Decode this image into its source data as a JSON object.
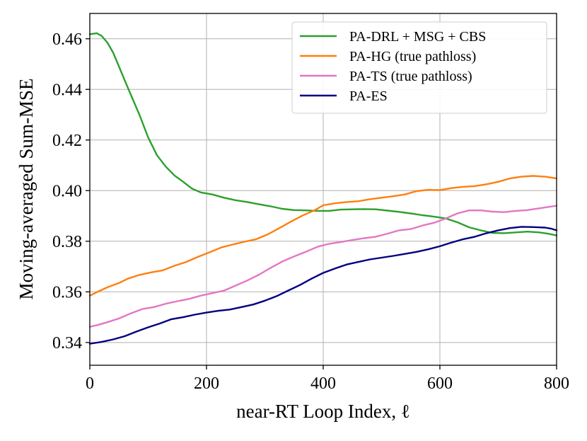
{
  "chart_data": {
    "type": "line",
    "title": "",
    "xlabel": "near-RT Loop Index, ℓ",
    "ylabel": "Moving-averaged Sum-MSE",
    "xlim": [
      0,
      800
    ],
    "ylim": [
      0.331,
      0.47
    ],
    "xticks": [
      0,
      200,
      400,
      600,
      800
    ],
    "yticks": [
      0.34,
      0.36,
      0.38,
      0.4,
      0.42,
      0.44,
      0.46
    ],
    "xtick_labels": [
      "0",
      "200",
      "400",
      "600",
      "800"
    ],
    "ytick_labels": [
      "0.34",
      "0.36",
      "0.38",
      "0.40",
      "0.42",
      "0.44",
      "0.46"
    ],
    "grid": true,
    "legend_position": "top-right",
    "series": [
      {
        "name": "PA-DRL + MSG + CBS",
        "color": "#2ca02c",
        "points": [
          [
            0,
            0.4618
          ],
          [
            12,
            0.4622
          ],
          [
            20,
            0.4612
          ],
          [
            30,
            0.4585
          ],
          [
            40,
            0.4545
          ],
          [
            50,
            0.449
          ],
          [
            60,
            0.4435
          ],
          [
            70,
            0.438
          ],
          [
            85,
            0.43
          ],
          [
            100,
            0.421
          ],
          [
            115,
            0.414
          ],
          [
            130,
            0.4095
          ],
          [
            145,
            0.406
          ],
          [
            160,
            0.4035
          ],
          [
            175,
            0.4008
          ],
          [
            190,
            0.3993
          ],
          [
            210,
            0.3985
          ],
          [
            230,
            0.3972
          ],
          [
            250,
            0.3962
          ],
          [
            270,
            0.3955
          ],
          [
            290,
            0.3946
          ],
          [
            310,
            0.3938
          ],
          [
            330,
            0.3928
          ],
          [
            350,
            0.3923
          ],
          [
            370,
            0.3922
          ],
          [
            390,
            0.392
          ],
          [
            410,
            0.392
          ],
          [
            430,
            0.3925
          ],
          [
            450,
            0.3926
          ],
          [
            470,
            0.3927
          ],
          [
            490,
            0.3926
          ],
          [
            510,
            0.3921
          ],
          [
            530,
            0.3916
          ],
          [
            550,
            0.391
          ],
          [
            570,
            0.3903
          ],
          [
            590,
            0.3897
          ],
          [
            610,
            0.389
          ],
          [
            630,
            0.3875
          ],
          [
            650,
            0.3855
          ],
          [
            670,
            0.3843
          ],
          [
            690,
            0.3833
          ],
          [
            710,
            0.3832
          ],
          [
            730,
            0.3835
          ],
          [
            750,
            0.3838
          ],
          [
            770,
            0.3835
          ],
          [
            785,
            0.383
          ],
          [
            800,
            0.3823
          ]
        ]
      },
      {
        "name": "PA-HG (true pathloss)",
        "color": "#ff7f0e",
        "points": [
          [
            0,
            0.3585
          ],
          [
            15,
            0.3602
          ],
          [
            30,
            0.3618
          ],
          [
            50,
            0.3635
          ],
          [
            65,
            0.3652
          ],
          [
            85,
            0.3667
          ],
          [
            105,
            0.3677
          ],
          [
            125,
            0.3685
          ],
          [
            145,
            0.3703
          ],
          [
            165,
            0.3718
          ],
          [
            185,
            0.3738
          ],
          [
            205,
            0.3756
          ],
          [
            225,
            0.3775
          ],
          [
            245,
            0.3787
          ],
          [
            265,
            0.3798
          ],
          [
            285,
            0.3808
          ],
          [
            305,
            0.3827
          ],
          [
            325,
            0.3852
          ],
          [
            345,
            0.3878
          ],
          [
            365,
            0.3902
          ],
          [
            385,
            0.3922
          ],
          [
            400,
            0.3942
          ],
          [
            420,
            0.395
          ],
          [
            440,
            0.3955
          ],
          [
            460,
            0.3958
          ],
          [
            480,
            0.3966
          ],
          [
            500,
            0.3972
          ],
          [
            520,
            0.3978
          ],
          [
            540,
            0.3985
          ],
          [
            560,
            0.3998
          ],
          [
            580,
            0.4003
          ],
          [
            600,
            0.4002
          ],
          [
            620,
            0.401
          ],
          [
            640,
            0.4015
          ],
          [
            660,
            0.4018
          ],
          [
            680,
            0.4025
          ],
          [
            700,
            0.4035
          ],
          [
            720,
            0.4048
          ],
          [
            740,
            0.4055
          ],
          [
            760,
            0.4058
          ],
          [
            780,
            0.4055
          ],
          [
            800,
            0.4048
          ]
        ]
      },
      {
        "name": "PA-TS (true pathloss)",
        "color": "#e377c2",
        "points": [
          [
            0,
            0.3462
          ],
          [
            15,
            0.347
          ],
          [
            30,
            0.348
          ],
          [
            50,
            0.3495
          ],
          [
            70,
            0.3515
          ],
          [
            90,
            0.3532
          ],
          [
            110,
            0.354
          ],
          [
            130,
            0.3553
          ],
          [
            150,
            0.3563
          ],
          [
            170,
            0.3572
          ],
          [
            190,
            0.3585
          ],
          [
            210,
            0.3595
          ],
          [
            230,
            0.3605
          ],
          [
            250,
            0.3625
          ],
          [
            270,
            0.3645
          ],
          [
            290,
            0.3668
          ],
          [
            310,
            0.3695
          ],
          [
            330,
            0.372
          ],
          [
            350,
            0.374
          ],
          [
            370,
            0.3758
          ],
          [
            390,
            0.3778
          ],
          [
            410,
            0.379
          ],
          [
            430,
            0.3797
          ],
          [
            450,
            0.3805
          ],
          [
            470,
            0.3812
          ],
          [
            490,
            0.3818
          ],
          [
            510,
            0.383
          ],
          [
            530,
            0.3843
          ],
          [
            550,
            0.3848
          ],
          [
            570,
            0.3862
          ],
          [
            590,
            0.3873
          ],
          [
            610,
            0.389
          ],
          [
            630,
            0.391
          ],
          [
            650,
            0.3922
          ],
          [
            670,
            0.3922
          ],
          [
            690,
            0.3917
          ],
          [
            710,
            0.3915
          ],
          [
            730,
            0.392
          ],
          [
            750,
            0.3923
          ],
          [
            770,
            0.393
          ],
          [
            790,
            0.3937
          ],
          [
            800,
            0.394
          ]
        ]
      },
      {
        "name": "PA-ES",
        "color": "#000080",
        "points": [
          [
            0,
            0.3395
          ],
          [
            20,
            0.3402
          ],
          [
            40,
            0.3412
          ],
          [
            60,
            0.3425
          ],
          [
            80,
            0.3443
          ],
          [
            100,
            0.346
          ],
          [
            120,
            0.3475
          ],
          [
            140,
            0.3492
          ],
          [
            160,
            0.35
          ],
          [
            180,
            0.351
          ],
          [
            200,
            0.3518
          ],
          [
            220,
            0.3525
          ],
          [
            240,
            0.353
          ],
          [
            260,
            0.354
          ],
          [
            280,
            0.355
          ],
          [
            300,
            0.3565
          ],
          [
            320,
            0.3583
          ],
          [
            340,
            0.3605
          ],
          [
            360,
            0.3627
          ],
          [
            380,
            0.3652
          ],
          [
            400,
            0.3675
          ],
          [
            420,
            0.3692
          ],
          [
            440,
            0.3708
          ],
          [
            460,
            0.3718
          ],
          [
            480,
            0.3728
          ],
          [
            500,
            0.3735
          ],
          [
            520,
            0.3742
          ],
          [
            540,
            0.375
          ],
          [
            560,
            0.3758
          ],
          [
            580,
            0.3768
          ],
          [
            600,
            0.378
          ],
          [
            620,
            0.3795
          ],
          [
            640,
            0.3808
          ],
          [
            660,
            0.3818
          ],
          [
            680,
            0.3832
          ],
          [
            700,
            0.3843
          ],
          [
            720,
            0.3852
          ],
          [
            740,
            0.3857
          ],
          [
            760,
            0.3856
          ],
          [
            780,
            0.3854
          ],
          [
            790,
            0.385
          ],
          [
            800,
            0.3843
          ]
        ]
      }
    ]
  }
}
